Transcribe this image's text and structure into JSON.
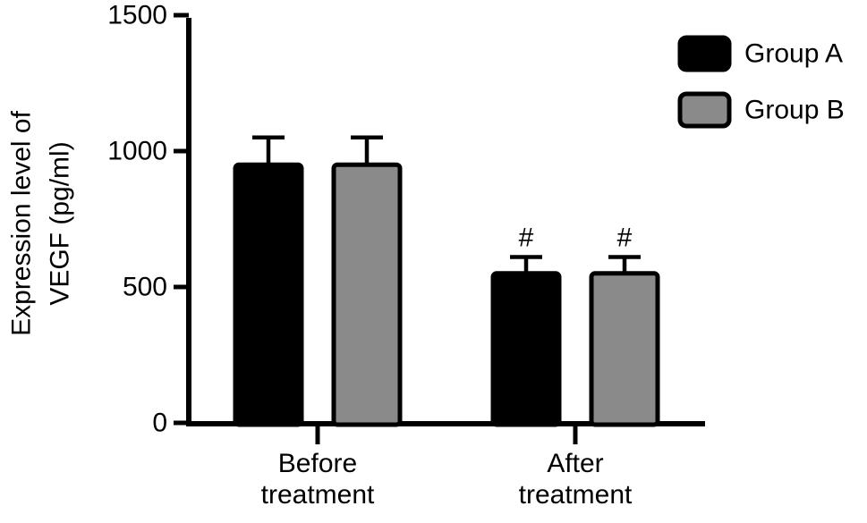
{
  "chart_data": {
    "type": "bar",
    "title": "",
    "ylabel_lines": [
      "Expression level of",
      "VEGF (pg/ml)"
    ],
    "xlabel": "",
    "ylim": [
      0,
      1500
    ],
    "yticks": [
      0,
      500,
      1000,
      1500
    ],
    "categories": [
      "Before treatment",
      "After treatment"
    ],
    "category_label_lines": [
      [
        "Before",
        "treatment"
      ],
      [
        "After",
        "treatment"
      ]
    ],
    "series": [
      {
        "name": "Group A",
        "color": "#000000",
        "border_color": "#000000",
        "values": [
          950,
          550
        ],
        "errors_up": [
          100,
          60
        ]
      },
      {
        "name": "Group B",
        "color": "#8a8a8a",
        "border_color": "#000000",
        "values": [
          950,
          550
        ],
        "errors_up": [
          100,
          60
        ]
      }
    ],
    "annotations": [
      {
        "text": "#",
        "category_index": 1,
        "series_index": 0
      },
      {
        "text": "#",
        "category_index": 1,
        "series_index": 1
      }
    ],
    "legend": {
      "entries": [
        "Group A",
        "Group B"
      ],
      "position": "top-right"
    },
    "grid": false,
    "background": "#ffffff",
    "axis_color": "#000000"
  }
}
